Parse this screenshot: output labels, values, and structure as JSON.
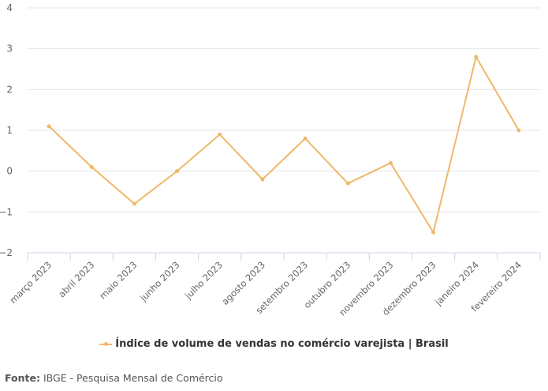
{
  "chart_data": {
    "type": "line",
    "title": "",
    "xlabel": "",
    "ylabel": "",
    "categories": [
      "março 2023",
      "abril 2023",
      "maio 2023",
      "junho 2023",
      "julho 2023",
      "agosto 2023",
      "setembro 2023",
      "outubro 2023",
      "novembro 2023",
      "dezembro 2023",
      "janeiro 2024",
      "fevereiro 2024"
    ],
    "series": [
      {
        "name": "Índice de volume de vendas no comércio varejista | Brasil",
        "color": "#f0b86a",
        "values": [
          1.1,
          0.1,
          -0.8,
          0.0,
          0.9,
          -0.2,
          0.8,
          -0.3,
          0.2,
          -1.5,
          2.8,
          1.0
        ]
      }
    ],
    "ylim": [
      -2,
      4
    ],
    "yticks": [
      "4",
      "3",
      "2",
      "1",
      "0",
      "−1",
      "−2"
    ],
    "grid": true,
    "legend_position": "bottom"
  },
  "source": {
    "label": "Fonte:",
    "text": "IBGE - Pesquisa Mensal de Comércio"
  }
}
